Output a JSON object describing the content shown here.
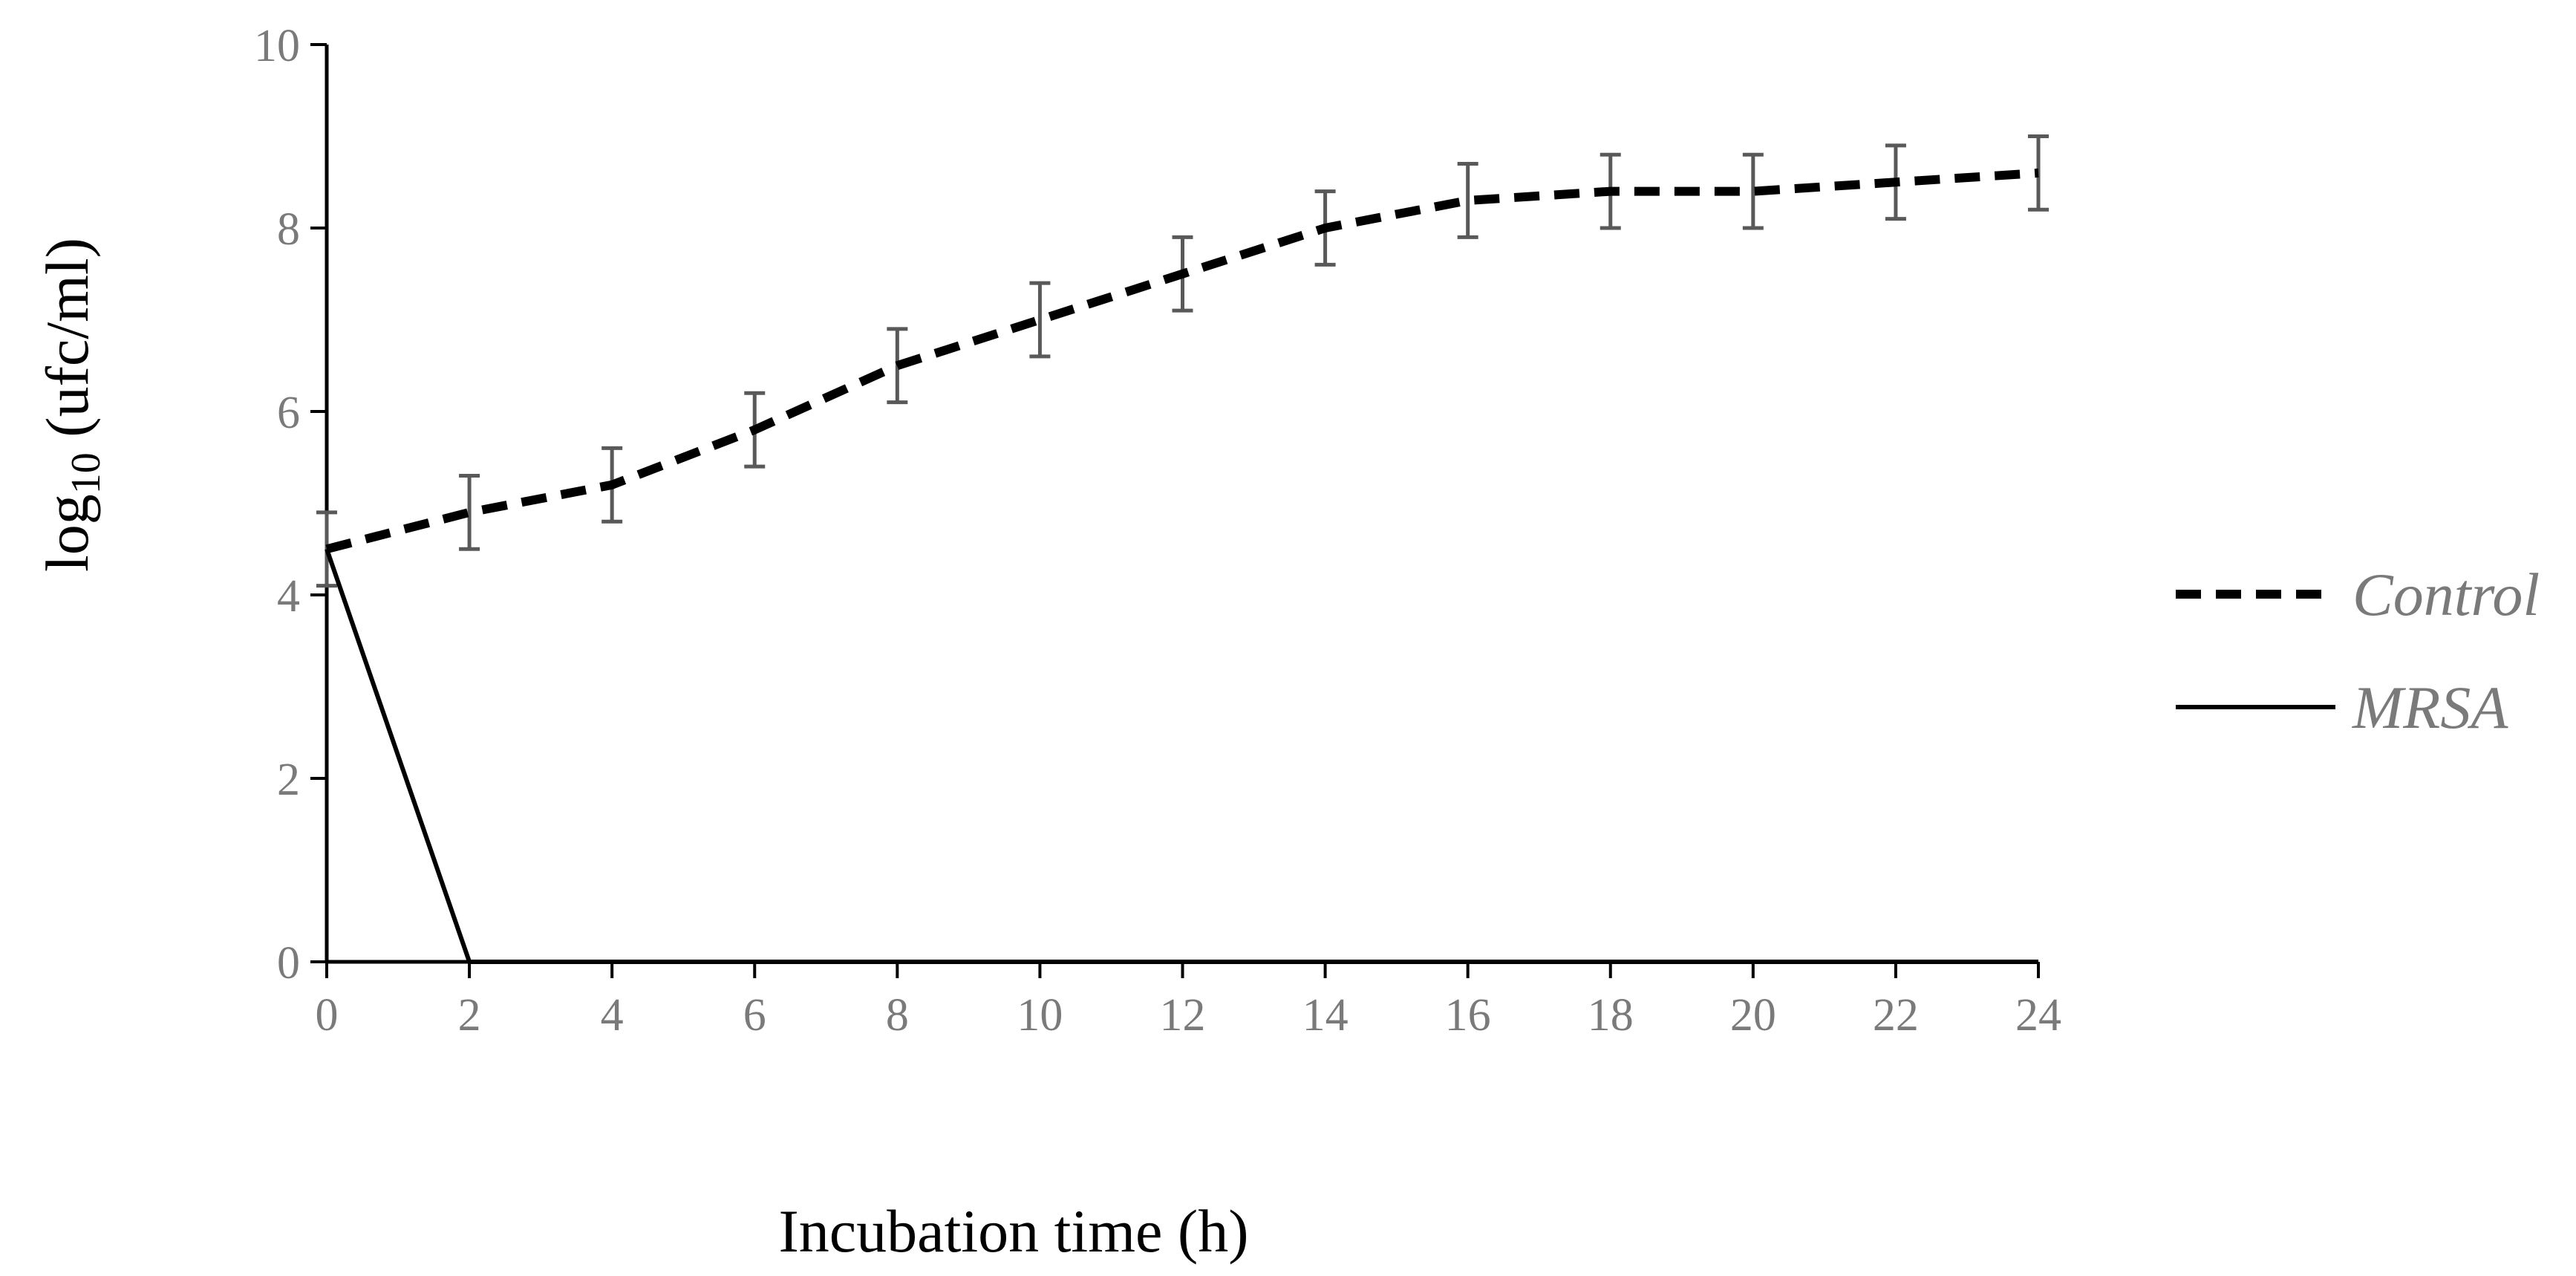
{
  "chart_data": {
    "type": "line",
    "title": "",
    "xlabel": "Incubation time (h)",
    "ylabel_main": "log",
    "ylabel_sub": "10",
    "ylabel_rest": " (ufc/ml)",
    "xlim": [
      0,
      24
    ],
    "ylim": [
      0,
      10
    ],
    "x_ticks": [
      "0",
      "2",
      "4",
      "6",
      "8",
      "10",
      "12",
      "14",
      "16",
      "18",
      "20",
      "22",
      "24"
    ],
    "y_ticks": [
      "0",
      "2",
      "4",
      "6",
      "8",
      "10"
    ],
    "grid": false,
    "legend_position": "right",
    "series": [
      {
        "name": "Control",
        "style": "dashed",
        "color": "#000000",
        "x": [
          0,
          2,
          4,
          6,
          8,
          10,
          12,
          14,
          16,
          18,
          20,
          22,
          24
        ],
        "y": [
          4.5,
          4.9,
          5.2,
          5.8,
          6.5,
          7.0,
          7.5,
          8.0,
          8.3,
          8.4,
          8.4,
          8.5,
          8.6
        ],
        "error": [
          0.4,
          0.4,
          0.4,
          0.4,
          0.4,
          0.4,
          0.4,
          0.4,
          0.4,
          0.4,
          0.4,
          0.4,
          0.4
        ]
      },
      {
        "name": "MRSA",
        "style": "solid",
        "color": "#000000",
        "x": [
          0,
          2,
          4,
          6,
          8,
          10,
          12,
          14,
          16,
          18,
          20,
          22,
          24
        ],
        "y": [
          4.5,
          0,
          0,
          0,
          0,
          0,
          0,
          0,
          0,
          0,
          0,
          0,
          0
        ]
      }
    ]
  },
  "colors": {
    "axis": "#000000",
    "error_bar": "#595959",
    "tick_label": "#7a7a7a"
  }
}
